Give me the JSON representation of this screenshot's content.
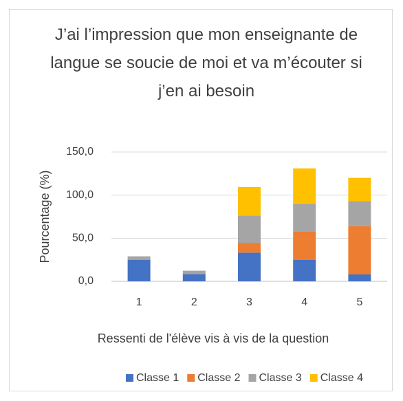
{
  "chart_data": {
    "type": "stacked_bar",
    "title": "J’ai l’impression que mon enseignante de langue se soucie de moi et va m’écouter si j’en ai besoin",
    "xlabel": "Ressenti de l'élève vis à vis de la question",
    "ylabel": "Pourcentage (%)",
    "categories": [
      "1",
      "2",
      "3",
      "4",
      "5"
    ],
    "series": [
      {
        "name": "Classe 1",
        "color": "#4472c4",
        "values": [
          25,
          8.3,
          33.3,
          25,
          8
        ]
      },
      {
        "name": "Classe 2",
        "color": "#ed7d31",
        "values": [
          0,
          0,
          11,
          33,
          56
        ]
      },
      {
        "name": "Classe 3",
        "color": "#a5a5a5",
        "values": [
          4,
          4,
          32,
          32,
          29
        ]
      },
      {
        "name": "Classe 4",
        "color": "#ffc000",
        "values": [
          0,
          0,
          33,
          41,
          27
        ]
      }
    ],
    "ylim": [
      0,
      150
    ],
    "yticks": [
      {
        "value": 0,
        "label": "0,0"
      },
      {
        "value": 50,
        "label": "50,0"
      },
      {
        "value": 100,
        "label": "100,0"
      },
      {
        "value": 150,
        "label": "150,0"
      }
    ],
    "grid": true,
    "legend": "bottom"
  }
}
